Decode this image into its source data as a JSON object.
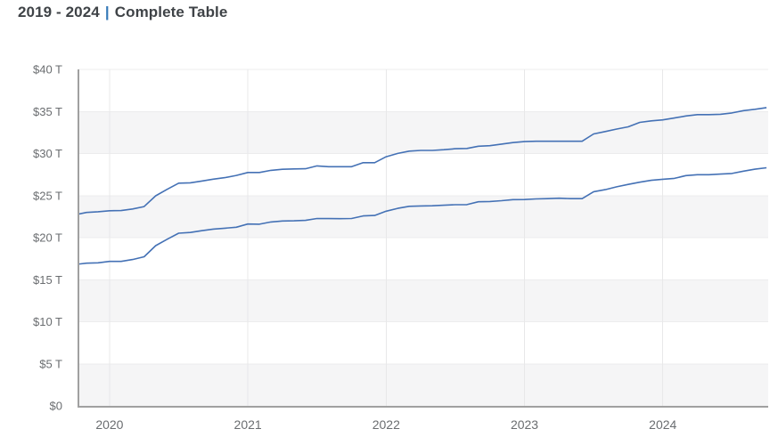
{
  "header": {
    "title_range": "2019 - 2024",
    "title_separator": "|",
    "title_section": "Complete Table"
  },
  "colors": {
    "line": "#4471b5",
    "band_gray": "#f5f5f6",
    "band_white": "#ffffff",
    "vgrid": "#e8e8e9",
    "hgrid": "#ececed",
    "axis": "#a0a0a0",
    "tick_text": "#6a6d70",
    "title_text": "#3f4347",
    "title_separator_blue": "#3579b8"
  },
  "chart_data": {
    "type": "line",
    "title": "",
    "xlabel": "",
    "ylabel": "",
    "y_unit": "trillion USD",
    "xlim_years": [
      2019.775,
      2024.762
    ],
    "ylim": [
      0,
      40
    ],
    "grid": "horizontal alternating bands every 5T, vertical gridline per year",
    "legend": "none",
    "markers": "none",
    "y_ticks": [
      {
        "v": 0,
        "label": "$0"
      },
      {
        "v": 5,
        "label": "$5 T"
      },
      {
        "v": 10,
        "label": "$10 T"
      },
      {
        "v": 15,
        "label": "$15 T"
      },
      {
        "v": 20,
        "label": "$20 T"
      },
      {
        "v": 25,
        "label": "$25 T"
      },
      {
        "v": 30,
        "label": "$30 T"
      },
      {
        "v": 35,
        "label": "$35 T"
      },
      {
        "v": 40,
        "label": "$40 T"
      }
    ],
    "x_ticks": [
      {
        "v": 2020,
        "label": "2020"
      },
      {
        "v": 2021,
        "label": "2021"
      },
      {
        "v": 2022,
        "label": "2022"
      },
      {
        "v": 2023,
        "label": "2023"
      },
      {
        "v": 2024,
        "label": "2024"
      }
    ],
    "x_months": [
      "2019-09",
      "2019-10",
      "2019-11",
      "2019-12",
      "2020-01",
      "2020-02",
      "2020-03",
      "2020-04",
      "2020-05",
      "2020-06",
      "2020-07",
      "2020-08",
      "2020-09",
      "2020-10",
      "2020-11",
      "2020-12",
      "2021-01",
      "2021-02",
      "2021-03",
      "2021-04",
      "2021-05",
      "2021-06",
      "2021-07",
      "2021-08",
      "2021-09",
      "2021-10",
      "2021-11",
      "2021-12",
      "2022-01",
      "2022-02",
      "2022-03",
      "2022-04",
      "2022-05",
      "2022-06",
      "2022-07",
      "2022-08",
      "2022-09",
      "2022-10",
      "2022-11",
      "2022-12",
      "2023-01",
      "2023-02",
      "2023-03",
      "2023-04",
      "2023-05",
      "2023-06",
      "2023-07",
      "2023-08",
      "2023-09",
      "2023-10",
      "2023-11",
      "2023-12",
      "2024-01",
      "2024-02",
      "2024-03",
      "2024-04",
      "2024-05",
      "2024-06",
      "2024-07",
      "2024-08",
      "2024-09"
    ],
    "series": [
      {
        "name": "upper-line",
        "values": [
          22.72,
          22.99,
          23.08,
          23.2,
          23.22,
          23.41,
          23.69,
          24.97,
          25.75,
          26.48,
          26.52,
          26.73,
          26.95,
          27.13,
          27.4,
          27.75,
          27.75,
          28.0,
          28.13,
          28.17,
          28.19,
          28.53,
          28.43,
          28.43,
          28.43,
          28.91,
          28.91,
          29.62,
          30.01,
          30.29,
          30.37,
          30.37,
          30.45,
          30.57,
          30.6,
          30.87,
          30.93,
          31.12,
          31.3,
          31.42,
          31.46,
          31.46,
          31.46,
          31.46,
          31.46,
          32.33,
          32.61,
          32.91,
          33.17,
          33.7,
          33.88,
          34.0,
          34.22,
          34.47,
          34.62,
          34.62,
          34.67,
          34.83,
          35.1,
          35.26,
          35.46
        ]
      },
      {
        "name": "lower-line",
        "values": [
          16.8,
          16.96,
          17.01,
          17.17,
          17.17,
          17.4,
          17.72,
          19.05,
          19.81,
          20.53,
          20.61,
          20.83,
          21.02,
          21.12,
          21.24,
          21.62,
          21.6,
          21.86,
          21.98,
          22.0,
          22.05,
          22.28,
          22.26,
          22.25,
          22.28,
          22.58,
          22.64,
          23.14,
          23.48,
          23.72,
          23.77,
          23.79,
          23.85,
          23.92,
          23.93,
          24.26,
          24.3,
          24.39,
          24.52,
          24.53,
          24.6,
          24.63,
          24.69,
          24.63,
          24.63,
          25.46,
          25.7,
          26.04,
          26.33,
          26.59,
          26.81,
          26.94,
          27.05,
          27.38,
          27.48,
          27.48,
          27.56,
          27.63,
          27.9,
          28.14,
          28.31
        ]
      }
    ]
  }
}
